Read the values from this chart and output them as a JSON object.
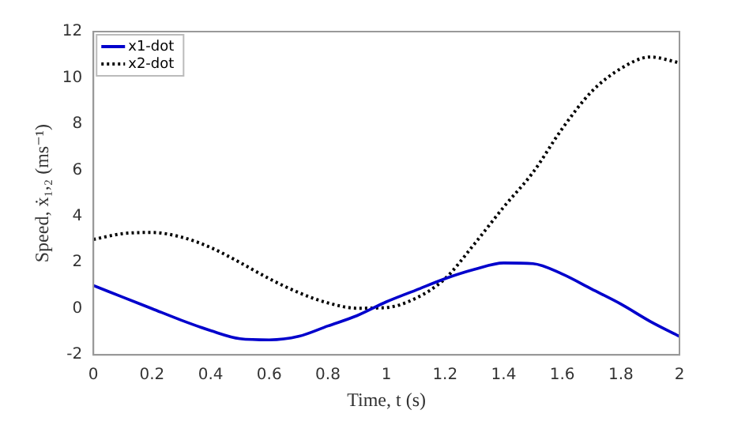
{
  "chart_data": {
    "type": "line",
    "xlabel": "Time, t (s)",
    "ylabel": "Speed, ẋ₁,₂ (ms⁻¹)",
    "x": [
      0,
      0.1,
      0.2,
      0.3,
      0.4,
      0.5,
      0.6,
      0.7,
      0.8,
      0.9,
      1.0,
      1.1,
      1.2,
      1.3,
      1.4,
      1.5,
      1.6,
      1.7,
      1.8,
      1.9,
      2.0
    ],
    "series": [
      {
        "name": "x1-dot",
        "color": "#0000cc",
        "line_style": "solid",
        "values": [
          1.0,
          0.5,
          0.0,
          -0.5,
          -0.95,
          -1.3,
          -1.35,
          -1.2,
          -0.75,
          -0.3,
          0.3,
          0.8,
          1.3,
          1.7,
          1.98,
          1.95,
          1.5,
          0.85,
          0.2,
          -0.55,
          -1.2
        ]
      },
      {
        "name": "x2-dot",
        "color": "#000000",
        "line_style": "dotted",
        "values": [
          3.0,
          3.25,
          3.3,
          3.1,
          2.65,
          2.0,
          1.3,
          0.7,
          0.25,
          0.02,
          0.05,
          0.45,
          1.3,
          2.8,
          4.4,
          5.9,
          7.8,
          9.4,
          10.4,
          10.9,
          10.65
        ]
      }
    ],
    "xlim": [
      0,
      2
    ],
    "xticks": [
      0,
      0.2,
      0.4,
      0.6,
      0.8,
      1,
      1.2,
      1.4,
      1.6,
      1.8,
      2
    ],
    "ylim": [
      -2,
      12
    ],
    "yticks": [
      -2,
      0,
      2,
      4,
      6,
      8,
      10,
      12
    ],
    "grid": false,
    "legend": "top left",
    "marker": "none"
  }
}
